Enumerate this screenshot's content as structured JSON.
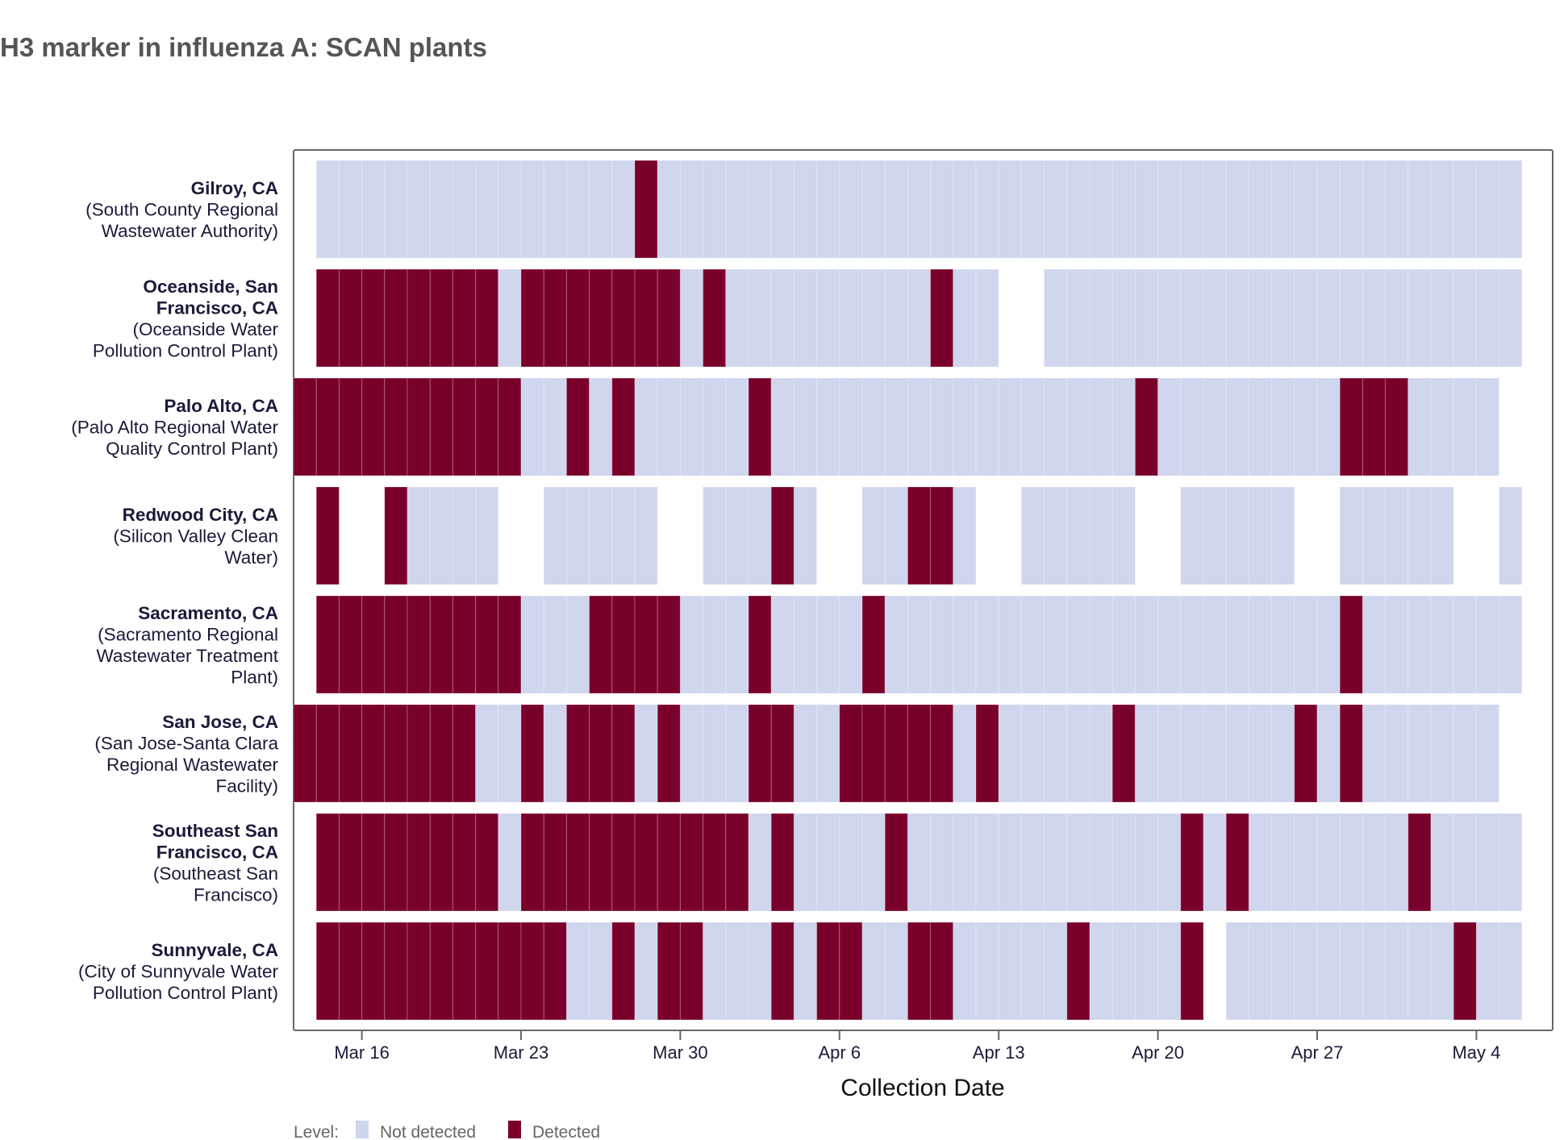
{
  "title": "H3 marker in influenza A: SCAN plants",
  "chart_data": {
    "type": "heatmap",
    "title": "H3 marker in influenza A: SCAN plants",
    "xlabel": "Collection Date",
    "ylabel": "",
    "x_start_date": "Mar 13",
    "x_days": 54,
    "x_ticks": [
      "Mar 16",
      "Mar 23",
      "Mar 30",
      "Apr 6",
      "Apr 13",
      "Apr 20",
      "Apr 27",
      "May 4"
    ],
    "x_tick_day_index": [
      3,
      10,
      17,
      24,
      31,
      38,
      45,
      52
    ],
    "legend": {
      "title": "Level:",
      "items": [
        {
          "code": "N",
          "label": "Not detected",
          "color": "#cfd6ee"
        },
        {
          "code": "D",
          "label": "Detected",
          "color": "#7a002c"
        }
      ],
      "placement": "bottom-left"
    },
    "status_legend_note": "runs: [code, number of consecutive days] starting Mar 13; '-' = no sample",
    "rows": [
      {
        "name": "Gilroy, CA",
        "facility": [
          "(South County Regional",
          "Wastewater Authority)"
        ],
        "runs": [
          [
            "-",
            1
          ],
          [
            "N",
            14
          ],
          [
            "D",
            1
          ],
          [
            "N",
            38
          ]
        ]
      },
      {
        "name": "Oceanside, San Francisco, CA",
        "name_lines": [
          "Oceanside, San",
          "Francisco, CA"
        ],
        "facility": [
          "(Oceanside Water",
          "Pollution Control Plant)"
        ],
        "runs": [
          [
            "-",
            1
          ],
          [
            "D",
            8
          ],
          [
            "N",
            1
          ],
          [
            "D",
            7
          ],
          [
            "N",
            1
          ],
          [
            "D",
            1
          ],
          [
            "N",
            9
          ],
          [
            "D",
            1
          ],
          [
            "N",
            2
          ],
          [
            "-",
            2
          ],
          [
            "N",
            21
          ]
        ]
      },
      {
        "name": "Palo Alto, CA",
        "facility": [
          "(Palo Alto Regional Water",
          "Quality Control Plant)"
        ],
        "runs": [
          [
            "D",
            10
          ],
          [
            "N",
            2
          ],
          [
            "D",
            1
          ],
          [
            "N",
            1
          ],
          [
            "D",
            1
          ],
          [
            "N",
            5
          ],
          [
            "D",
            1
          ],
          [
            "N",
            16
          ],
          [
            "D",
            1
          ],
          [
            "N",
            8
          ],
          [
            "D",
            3
          ],
          [
            "N",
            4
          ],
          [
            "-",
            1
          ]
        ]
      },
      {
        "name": "Redwood City, CA",
        "facility": [
          "(Silicon Valley Clean",
          "Water)"
        ],
        "runs": [
          [
            "-",
            1
          ],
          [
            "D",
            1
          ],
          [
            "-",
            2
          ],
          [
            "D",
            1
          ],
          [
            "N",
            4
          ],
          [
            "-",
            2
          ],
          [
            "N",
            5
          ],
          [
            "-",
            2
          ],
          [
            "N",
            3
          ],
          [
            "D",
            1
          ],
          [
            "N",
            1
          ],
          [
            "-",
            2
          ],
          [
            "N",
            2
          ],
          [
            "D",
            2
          ],
          [
            "N",
            1
          ],
          [
            "-",
            2
          ],
          [
            "N",
            5
          ],
          [
            "-",
            2
          ],
          [
            "N",
            5
          ],
          [
            "-",
            2
          ],
          [
            "N",
            5
          ],
          [
            "-",
            2
          ],
          [
            "N",
            1
          ]
        ]
      },
      {
        "name": "Sacramento, CA",
        "facility": [
          "(Sacramento Regional",
          "Wastewater Treatment",
          "Plant)"
        ],
        "runs": [
          [
            "-",
            1
          ],
          [
            "D",
            9
          ],
          [
            "N",
            3
          ],
          [
            "D",
            4
          ],
          [
            "N",
            3
          ],
          [
            "D",
            1
          ],
          [
            "N",
            4
          ],
          [
            "D",
            1
          ],
          [
            "N",
            20
          ],
          [
            "D",
            1
          ],
          [
            "N",
            7
          ]
        ]
      },
      {
        "name": "San Jose, CA",
        "facility": [
          "(San Jose-Santa Clara",
          "Regional Wastewater",
          "Facility)"
        ],
        "runs": [
          [
            "D",
            8
          ],
          [
            "N",
            2
          ],
          [
            "D",
            1
          ],
          [
            "N",
            1
          ],
          [
            "D",
            3
          ],
          [
            "N",
            1
          ],
          [
            "D",
            1
          ],
          [
            "N",
            3
          ],
          [
            "D",
            2
          ],
          [
            "N",
            2
          ],
          [
            "D",
            5
          ],
          [
            "N",
            1
          ],
          [
            "D",
            1
          ],
          [
            "N",
            5
          ],
          [
            "D",
            1
          ],
          [
            "N",
            7
          ],
          [
            "D",
            1
          ],
          [
            "N",
            1
          ],
          [
            "D",
            1
          ],
          [
            "N",
            6
          ],
          [
            "-",
            1
          ]
        ]
      },
      {
        "name": "Southeast San Francisco, CA",
        "name_lines": [
          "Southeast San",
          "Francisco, CA"
        ],
        "facility": [
          "(Southeast San",
          "Francisco)"
        ],
        "runs": [
          [
            "-",
            1
          ],
          [
            "D",
            8
          ],
          [
            "N",
            1
          ],
          [
            "D",
            10
          ],
          [
            "N",
            1
          ],
          [
            "D",
            1
          ],
          [
            "N",
            4
          ],
          [
            "D",
            1
          ],
          [
            "N",
            12
          ],
          [
            "D",
            1
          ],
          [
            "N",
            1
          ],
          [
            "D",
            1
          ],
          [
            "N",
            7
          ],
          [
            "D",
            1
          ],
          [
            "N",
            4
          ]
        ]
      },
      {
        "name": "Sunnyvale, CA",
        "facility": [
          "(City of Sunnyvale Water",
          "Pollution Control Plant)"
        ],
        "runs": [
          [
            "-",
            1
          ],
          [
            "D",
            11
          ],
          [
            "N",
            2
          ],
          [
            "D",
            1
          ],
          [
            "N",
            1
          ],
          [
            "D",
            2
          ],
          [
            "N",
            3
          ],
          [
            "D",
            1
          ],
          [
            "N",
            1
          ],
          [
            "D",
            2
          ],
          [
            "N",
            2
          ],
          [
            "D",
            2
          ],
          [
            "N",
            5
          ],
          [
            "D",
            1
          ],
          [
            "N",
            4
          ],
          [
            "D",
            1
          ],
          [
            "-",
            1
          ],
          [
            "N",
            10
          ],
          [
            "D",
            1
          ],
          [
            "N",
            2
          ]
        ]
      }
    ]
  }
}
